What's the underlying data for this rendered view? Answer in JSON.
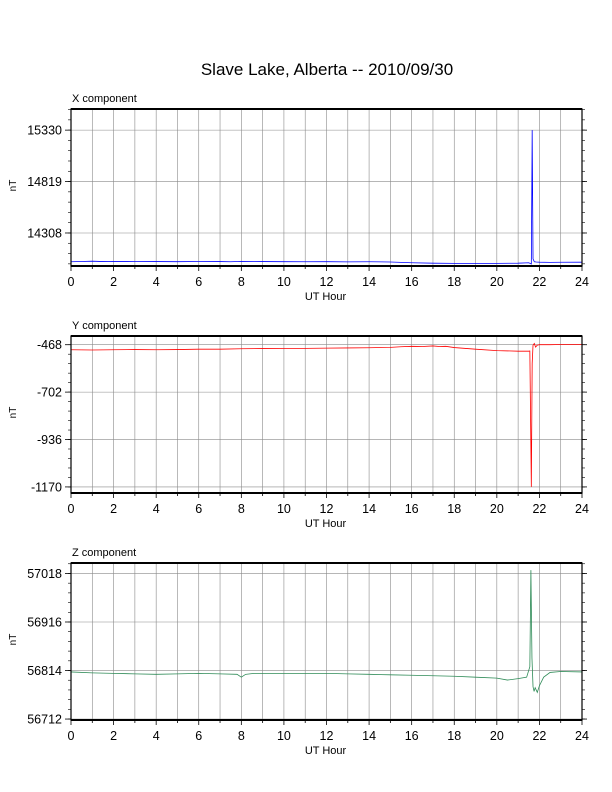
{
  "title": "Slave Lake, Alberta -- 2010/09/30",
  "chart_data": [
    {
      "type": "line",
      "component_label": "X component",
      "xlabel": "UT Hour",
      "ylabel": "nT",
      "xlim": [
        0,
        24
      ],
      "ylim": [
        13980,
        15540
      ],
      "x_ticks": [
        0,
        2,
        4,
        6,
        8,
        10,
        12,
        14,
        16,
        18,
        20,
        22,
        24
      ],
      "y_ticks": [
        14308,
        14819,
        15330
      ],
      "grid": true,
      "color": "#0000ff",
      "series": [
        {
          "x": [
            0,
            0.5,
            1,
            1.5,
            2,
            3,
            4,
            5,
            6,
            7,
            7.5,
            8,
            9,
            10,
            11,
            12,
            13,
            14,
            15,
            15.5,
            16,
            17,
            18,
            19,
            20,
            21,
            21.5,
            21.62,
            21.66,
            21.7,
            21.76,
            21.85,
            22,
            22.5,
            23,
            24
          ],
          "y": [
            14022,
            14025,
            14028,
            14024,
            14026,
            14025,
            14024,
            14023,
            14025,
            14024,
            14022,
            14026,
            14024,
            14023,
            14022,
            14023,
            14021,
            14022,
            14020,
            14016,
            14012,
            14008,
            14006,
            14005,
            14006,
            14008,
            14012,
            14000,
            15330,
            14050,
            14022,
            14020,
            14018,
            14016,
            14017,
            14018
          ]
        }
      ]
    },
    {
      "type": "line",
      "component_label": "Y component",
      "xlabel": "UT Hour",
      "ylabel": "nT",
      "xlim": [
        0,
        24
      ],
      "ylim": [
        -1200,
        -425
      ],
      "x_ticks": [
        0,
        2,
        4,
        6,
        8,
        10,
        12,
        14,
        16,
        18,
        20,
        22,
        24
      ],
      "y_ticks": [
        -468,
        -702,
        -936,
        -1170
      ],
      "grid": true,
      "color": "#ff0000",
      "series": [
        {
          "x": [
            0,
            1,
            2,
            3,
            4,
            5,
            6,
            7,
            8,
            9,
            10,
            11,
            12,
            13,
            14,
            15,
            15.5,
            16,
            16.5,
            17,
            17.3,
            17.6,
            18,
            19,
            20,
            21,
            21.5,
            21.55,
            21.62,
            21.66,
            21.7,
            21.76,
            21.82,
            21.9,
            22,
            22.5,
            23,
            24
          ],
          "y": [
            -493,
            -494,
            -493,
            -492,
            -493,
            -492,
            -490,
            -490,
            -488,
            -487,
            -486,
            -486,
            -485,
            -484,
            -483,
            -481,
            -478,
            -476,
            -477,
            -474,
            -477,
            -476,
            -482,
            -490,
            -497,
            -500,
            -500,
            -499,
            -1170,
            -560,
            -470,
            -462,
            -480,
            -470,
            -468,
            -468,
            -467,
            -467
          ]
        }
      ]
    },
    {
      "type": "line",
      "component_label": "Z component",
      "xlabel": "UT Hour",
      "ylabel": "nT",
      "xlim": [
        0,
        24
      ],
      "ylim": [
        56710,
        57040
      ],
      "x_ticks": [
        0,
        2,
        4,
        6,
        8,
        10,
        12,
        14,
        16,
        18,
        20,
        22,
        24
      ],
      "y_ticks": [
        57018,
        56916,
        56814,
        56712
      ],
      "grid": true,
      "color": "#2e8b57",
      "series": [
        {
          "x": [
            0,
            1,
            2,
            3,
            4,
            5,
            6,
            7,
            7.8,
            8,
            8.2,
            8.6,
            9,
            10,
            11,
            12,
            13,
            14,
            15,
            16,
            17,
            18,
            19,
            20,
            20.5,
            21,
            21.4,
            21.55,
            21.6,
            21.65,
            21.7,
            21.75,
            21.8,
            21.9,
            22,
            22.2,
            22.5,
            23,
            24
          ],
          "y": [
            56811,
            56809,
            56808,
            56807,
            56806,
            56807,
            56808,
            56807,
            56806,
            56800,
            56806,
            56808,
            56808,
            56808,
            56808,
            56808,
            56807,
            56806,
            56805,
            56804,
            56803,
            56802,
            56800,
            56798,
            56794,
            56797,
            56800,
            56822,
            57025,
            56840,
            56780,
            56770,
            56778,
            56768,
            56782,
            56800,
            56810,
            56812,
            56811
          ]
        }
      ]
    }
  ]
}
